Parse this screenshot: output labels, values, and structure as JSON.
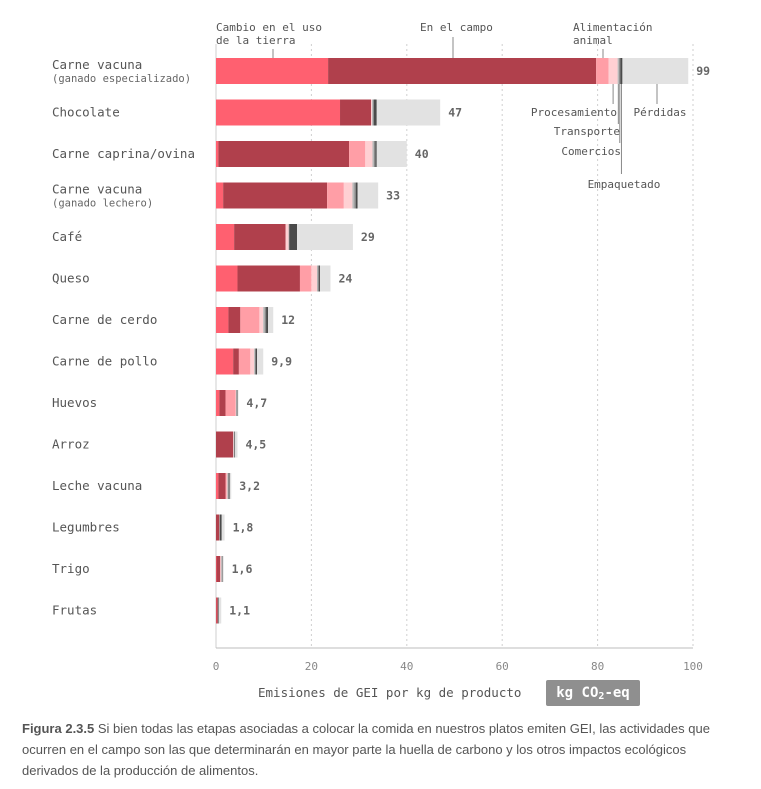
{
  "chart_data": {
    "type": "bar",
    "orientation": "horizontal",
    "stacked": true,
    "xlabel": "Emisiones de GEI por kg de producto",
    "unit": "kg CO2-eq",
    "unit_parts": {
      "pre": "kg CO",
      "sub": "2",
      "post": "-eq"
    },
    "xlim": [
      0,
      100
    ],
    "xticks": [
      0,
      20,
      40,
      60,
      80,
      100
    ],
    "grid": true,
    "stages": [
      {
        "name": "Cambio en el uso de la tierra",
        "label_lines": [
          "Cambio en el uso",
          "de la tierra"
        ],
        "color": "#ff6070"
      },
      {
        "name": "En el campo",
        "label_lines": [
          "En el campo"
        ],
        "color": "#b0404c"
      },
      {
        "name": "Alimentación animal",
        "label_lines": [
          "Alimentación",
          "animal"
        ],
        "color": "#ff9ea6"
      },
      {
        "name": "Procesamiento",
        "label_lines": [
          "Procesamiento"
        ],
        "color": "#ffd0d3"
      },
      {
        "name": "Transporte",
        "label_lines": [
          "Transporte"
        ],
        "color": "#b9b9b9"
      },
      {
        "name": "Comercios",
        "label_lines": [
          "Comercios"
        ],
        "color": "#8a8a8a"
      },
      {
        "name": "Empaquetado",
        "label_lines": [
          "Empaquetado"
        ],
        "color": "#4a4a4a"
      },
      {
        "name": "Pérdidas",
        "label_lines": [
          "Pérdidas"
        ],
        "color": "#e2e2e2"
      }
    ],
    "categories": [
      {
        "label": "Carne vacuna",
        "sublabel": "(ganado especializado)",
        "total": "99",
        "segments": [
          23.5,
          56.2,
          2.6,
          1.9,
          0.3,
          0.3,
          0.4,
          13.8
        ]
      },
      {
        "label": "Chocolate",
        "sublabel": "",
        "total": "47",
        "segments": [
          26.0,
          6.5,
          0,
          0.2,
          0.2,
          0.2,
          0.6,
          13.3
        ]
      },
      {
        "label": "Carne caprina/ovina",
        "sublabel": "",
        "total": "40",
        "segments": [
          0.5,
          27.4,
          3.4,
          1.5,
          0.3,
          0.3,
          0.3,
          6.3
        ]
      },
      {
        "label": "Carne vacuna",
        "sublabel": "(ganado lechero)",
        "total": "33",
        "segments": [
          1.5,
          21.8,
          3.5,
          1.8,
          0.4,
          0.3,
          0.4,
          4.3
        ]
      },
      {
        "label": "Café",
        "sublabel": "",
        "total": "29",
        "segments": [
          3.8,
          10.8,
          0,
          0.6,
          0.1,
          0.1,
          1.6,
          11.7
        ]
      },
      {
        "label": "Queso",
        "sublabel": "",
        "total": "24",
        "segments": [
          4.5,
          13.1,
          2.4,
          1.2,
          0.1,
          0.3,
          0.2,
          2.2
        ]
      },
      {
        "label": "Carne de cerdo",
        "sublabel": "",
        "total": "12",
        "segments": [
          2.6,
          2.5,
          4.0,
          0.8,
          0.3,
          0.3,
          0.4,
          1.1
        ]
      },
      {
        "label": "Carne de pollo",
        "sublabel": "",
        "total": "9,9",
        "segments": [
          3.6,
          1.2,
          2.4,
          0.8,
          0.2,
          0.1,
          0.3,
          1.3
        ]
      },
      {
        "label": "Huevos",
        "sublabel": "",
        "total": "4,7",
        "segments": [
          0.7,
          1.3,
          2.1,
          0.1,
          0.1,
          0.1,
          0.1,
          0.2
        ]
      },
      {
        "label": "Arroz",
        "sublabel": "",
        "total": "4,5",
        "segments": [
          0,
          3.6,
          0,
          0.1,
          0.1,
          0.1,
          0.1,
          0.5
        ]
      },
      {
        "label": "Leche vacuna",
        "sublabel": "",
        "total": "3,2",
        "segments": [
          0.5,
          1.5,
          0.2,
          0.2,
          0.1,
          0.3,
          0.1,
          0.3
        ]
      },
      {
        "label": "Legumbres",
        "sublabel": "",
        "total": "1,8",
        "segments": [
          0,
          0.7,
          0,
          0,
          0.1,
          0,
          0.4,
          0.6
        ]
      },
      {
        "label": "Trigo",
        "sublabel": "",
        "total": "1,6",
        "segments": [
          0.1,
          0.8,
          0,
          0.2,
          0.1,
          0.1,
          0.1,
          0.2
        ]
      },
      {
        "label": "Frutas",
        "sublabel": "",
        "total": "1,1",
        "segments": [
          0.1,
          0.3,
          0,
          0,
          0.1,
          0,
          0.1,
          0.5
        ]
      }
    ]
  },
  "caption": {
    "figure_label": "Figura 2.3.5",
    "text": " Si bien todas las etapas asociadas a colocar la comida en nuestros platos emiten GEI, las actividades que ocurren en el campo son las que determinarán en mayor parte la huella de carbono y los otros impactos ecológicos derivados de la producción de alimentos."
  }
}
